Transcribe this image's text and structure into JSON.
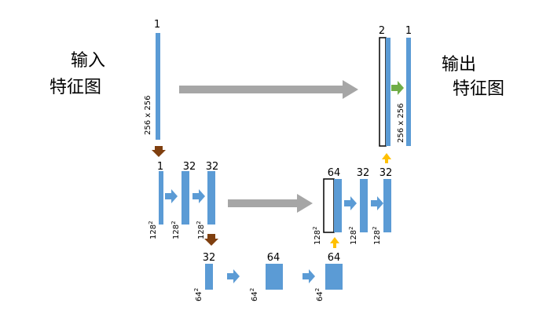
{
  "labels": {
    "input_line1": "输入",
    "input_line2": "特征图",
    "output_line1": "输出",
    "output_line2": "特征图"
  },
  "top_level": {
    "input_channels": "1",
    "input_size": "256 x 256",
    "concat_channels": "2",
    "output_channels": "1",
    "output_size": "256 x 256"
  },
  "mid_level": {
    "enc_channels": [
      "1",
      "32",
      "32"
    ],
    "dec_channels": [
      "64",
      "32",
      "32"
    ],
    "size_base": "128",
    "size_exp": "2"
  },
  "low_level": {
    "channels": [
      "32",
      "64",
      "64"
    ],
    "size_base": "64",
    "size_exp": "2"
  },
  "colors": {
    "bar": "#5b9bd5",
    "skip_arrow": "#a6a6a6",
    "down_arrow": "#7f3f0f",
    "up_arrow": "#ffc000",
    "final_arrow": "#70ad47"
  }
}
